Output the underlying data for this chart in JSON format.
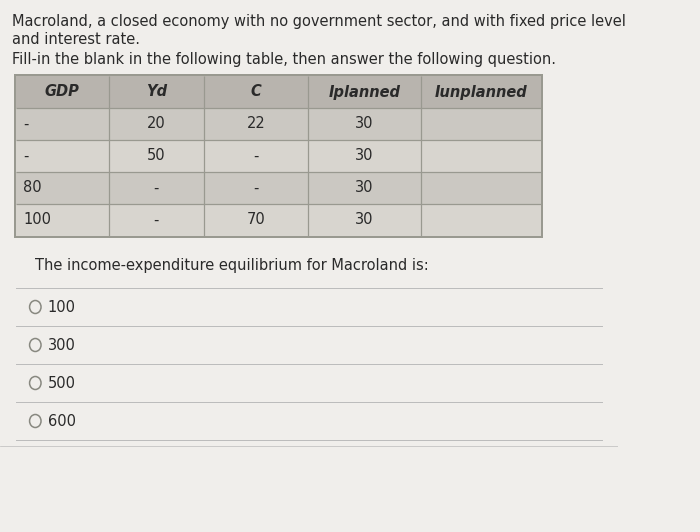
{
  "title_line1": "Macroland, a closed economy with no government sector, and with fixed price level",
  "title_line2": "and interest rate.",
  "subtitle": "Fill-in the blank in the following table, then answer the following question.",
  "table_headers": [
    "GDP",
    "Yd",
    "C",
    "Iplanned",
    "Iunplanned"
  ],
  "table_rows": [
    [
      "-",
      "20",
      "22",
      "30",
      ""
    ],
    [
      "-",
      "50",
      "-",
      "30",
      ""
    ],
    [
      "80",
      "-",
      "-",
      "30",
      ""
    ],
    [
      "100",
      "-",
      "70",
      "30",
      ""
    ]
  ],
  "question": "The income-expenditure equilibrium for Macroland is:",
  "options": [
    "100",
    "300",
    "500",
    "600"
  ],
  "bg_color": "#f0eeeb",
  "table_bg_outer": "#e8e5e0",
  "table_header_bg": "#b8b4ae",
  "table_row_odd": "#cbc8c2",
  "table_row_even": "#d8d5cf",
  "border_color": "#999990",
  "text_color": "#2a2a2a",
  "divider_color": "#bbbbbb",
  "option_section_bg": "#e8e5e0"
}
